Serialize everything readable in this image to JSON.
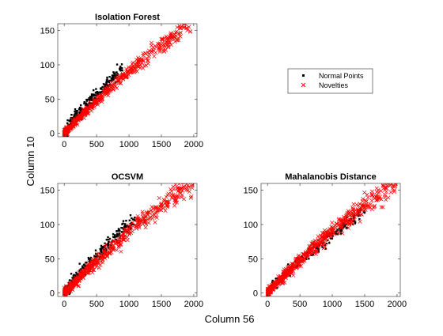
{
  "figure": {
    "xlabel": "Column 56",
    "ylabel": "Column 10",
    "colors": {
      "normal": "#000000",
      "novelty": "#ff0000",
      "axes": "#262626"
    }
  },
  "legend": {
    "placement": "right of top row",
    "entries": [
      {
        "label": "Normal Points",
        "marker": "point",
        "color": "#000000"
      },
      {
        "label": "Novelties",
        "marker": "x",
        "color": "#ff0000"
      }
    ]
  },
  "chart_data": [
    {
      "type": "scatter",
      "title": "Isolation Forest",
      "xlim": [
        -100,
        2050
      ],
      "ylim": [
        -5,
        160
      ],
      "xticks": [
        0,
        500,
        1000,
        1500,
        2000
      ],
      "yticks": [
        0,
        50,
        100,
        150
      ],
      "series": [
        {
          "name": "Normal Points",
          "trend": [
            [
              0,
              0
            ],
            [
              100,
              14
            ],
            [
              200,
              26
            ],
            [
              300,
              34
            ],
            [
              400,
              46
            ],
            [
              500,
              56
            ],
            [
              600,
              66
            ],
            [
              700,
              76
            ],
            [
              800,
              86
            ],
            [
              900,
              96
            ]
          ],
          "spread": 5,
          "count": 300
        },
        {
          "name": "Novelties",
          "trend": [
            [
              0,
              0
            ],
            [
              200,
              20
            ],
            [
              500,
              47
            ],
            [
              800,
              74
            ],
            [
              1000,
              92
            ],
            [
              1200,
              107
            ],
            [
              1500,
              128
            ],
            [
              1700,
              143
            ],
            [
              1900,
              158
            ],
            [
              1980,
              160
            ]
          ],
          "spread": 5,
          "count": 500
        }
      ]
    },
    {
      "type": "scatter",
      "title": "OCSVM",
      "xlim": [
        -100,
        2050
      ],
      "ylim": [
        -5,
        160
      ],
      "xticks": [
        0,
        500,
        1000,
        1500,
        2000
      ],
      "yticks": [
        0,
        50,
        100,
        150
      ],
      "series": [
        {
          "name": "Normal Points",
          "trend": [
            [
              0,
              0
            ],
            [
              100,
              13
            ],
            [
              200,
              25
            ],
            [
              300,
              33
            ],
            [
              400,
              44
            ],
            [
              500,
              53
            ],
            [
              600,
              63
            ],
            [
              700,
              73
            ],
            [
              800,
              83
            ],
            [
              900,
              93
            ],
            [
              1100,
              103
            ]
          ],
          "spread": 5,
          "count": 300
        },
        {
          "name": "Novelties",
          "trend": [
            [
              0,
              0
            ],
            [
              200,
              19
            ],
            [
              500,
              46
            ],
            [
              800,
              72
            ],
            [
              1000,
              90
            ],
            [
              1200,
              106
            ],
            [
              1500,
              127
            ],
            [
              1700,
              142
            ],
            [
              1900,
              157
            ],
            [
              1980,
              160
            ]
          ],
          "spread": 6,
          "count": 500
        }
      ]
    },
    {
      "type": "scatter",
      "title": "Mahalanobis Distance",
      "xlim": [
        -100,
        2050
      ],
      "ylim": [
        -5,
        160
      ],
      "xticks": [
        0,
        500,
        1000,
        1500,
        2000
      ],
      "yticks": [
        0,
        50,
        100,
        150
      ],
      "series": [
        {
          "name": "Normal Points",
          "trend": [
            [
              0,
              0
            ],
            [
              100,
              12
            ],
            [
              300,
              30
            ],
            [
              500,
              47
            ],
            [
              700,
              62
            ],
            [
              900,
              78
            ],
            [
              1100,
              92
            ],
            [
              1300,
              108
            ],
            [
              1500,
              122
            ]
          ],
          "spread": 4,
          "count": 250
        },
        {
          "name": "Novelties",
          "trend": [
            [
              0,
              0
            ],
            [
              200,
              20
            ],
            [
              500,
              48
            ],
            [
              800,
              74
            ],
            [
              1000,
              92
            ],
            [
              1200,
              106
            ],
            [
              1500,
              127
            ],
            [
              1700,
              142
            ],
            [
              1900,
              156
            ],
            [
              1980,
              160
            ]
          ],
          "spread": 6,
          "count": 550
        }
      ]
    }
  ]
}
